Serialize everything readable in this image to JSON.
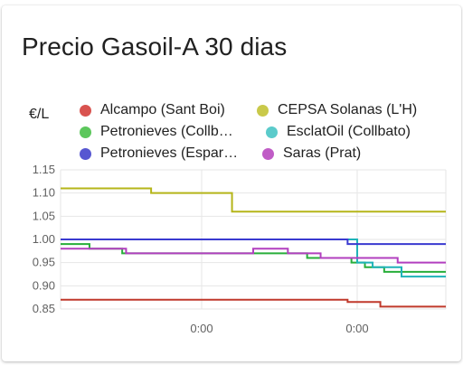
{
  "card": {
    "title": "Precio Gasoil-A 30 dias",
    "unit_label": "€/L"
  },
  "chart_data": {
    "type": "line",
    "ylim": [
      0.85,
      1.15
    ],
    "yticks": [
      1.15,
      1.1,
      1.05,
      1.0,
      0.95,
      0.9,
      0.85
    ],
    "ytick_labels": [
      "1.15",
      "1.10",
      "1.05",
      "1.00",
      "0.95",
      "0.90",
      "0.85"
    ],
    "xtick_labels": [
      "0:00",
      "0:00"
    ],
    "grid": true,
    "legend_position": "top",
    "series": [
      {
        "name": "Alcampo (Sant Boi)",
        "color": "#c0392b",
        "step": true,
        "points": [
          [
            0.0,
            0.87
          ],
          [
            0.745,
            0.865
          ],
          [
            0.83,
            0.855
          ],
          [
            1.0,
            0.855
          ]
        ]
      },
      {
        "name": "CEPSA Solanas (L'H)",
        "color": "#b5b519",
        "step": true,
        "points": [
          [
            0.0,
            1.11
          ],
          [
            0.235,
            1.1
          ],
          [
            0.445,
            1.06
          ],
          [
            1.0,
            1.06
          ]
        ]
      },
      {
        "name": "Petronieves (Collbato)",
        "color": "#27ae3a",
        "step": true,
        "points": [
          [
            0.0,
            0.99
          ],
          [
            0.075,
            0.98
          ],
          [
            0.16,
            0.97
          ],
          [
            0.64,
            0.96
          ],
          [
            0.755,
            0.95
          ],
          [
            0.79,
            0.94
          ],
          [
            0.84,
            0.93
          ],
          [
            1.0,
            0.93
          ]
        ]
      },
      {
        "name": "EsclatOil (Collbato)",
        "color": "#1fb3b8",
        "step": true,
        "points": [
          [
            0.0,
            1.0
          ],
          [
            0.76,
            1.0
          ],
          [
            0.77,
            0.95
          ],
          [
            0.81,
            0.94
          ],
          [
            0.885,
            0.92
          ],
          [
            1.0,
            0.92
          ]
        ]
      },
      {
        "name": "Petronieves (Esparreguera)",
        "color": "#3a3ad0",
        "step": true,
        "points": [
          [
            0.0,
            1.0
          ],
          [
            0.745,
            0.99
          ],
          [
            1.0,
            0.99
          ]
        ]
      },
      {
        "name": "Saras (Prat)",
        "color": "#b23fbf",
        "step": true,
        "points": [
          [
            0.0,
            0.98
          ],
          [
            0.17,
            0.97
          ],
          [
            0.5,
            0.98
          ],
          [
            0.59,
            0.97
          ],
          [
            0.675,
            0.96
          ],
          [
            0.875,
            0.95
          ],
          [
            1.0,
            0.95
          ]
        ]
      }
    ]
  },
  "legend": {
    "items": [
      {
        "label": "Alcampo (Sant Boi)",
        "color": "#d9534f"
      },
      {
        "label": "CEPSA Solanas (L'H)",
        "color": "#c9c94a"
      },
      {
        "label": "Petronieves (Collb…",
        "color": "#5cc75c"
      },
      {
        "label": "EsclatOil (Collbato)",
        "color": "#5bcbcb"
      },
      {
        "label": "Petronieves (Espar…",
        "color": "#5757d1"
      },
      {
        "label": "Saras (Prat)",
        "color": "#c05cc6"
      }
    ]
  }
}
